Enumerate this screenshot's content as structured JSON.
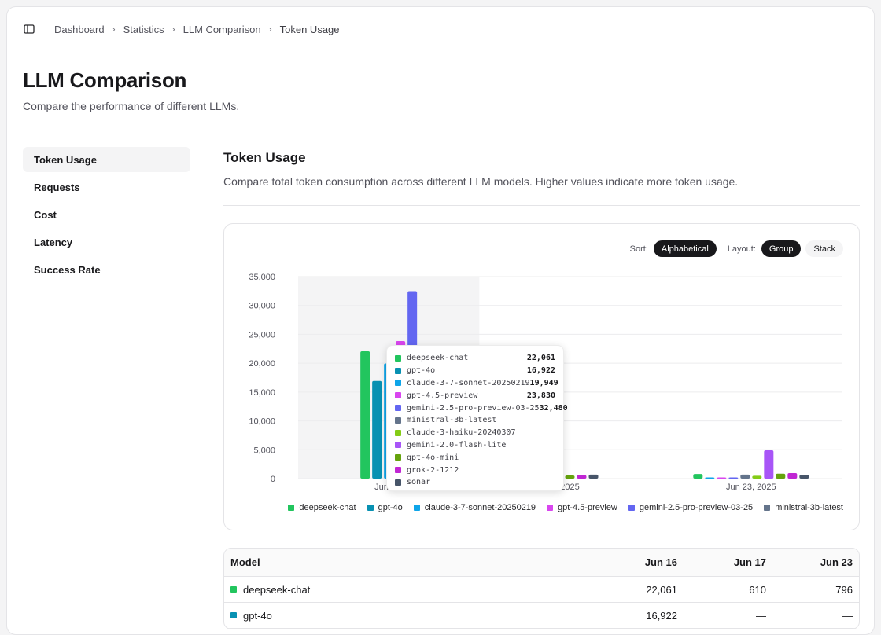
{
  "breadcrumb": [
    "Dashboard",
    "Statistics",
    "LLM Comparison",
    "Token Usage"
  ],
  "page": {
    "title": "LLM Comparison",
    "subtitle": "Compare the performance of different LLMs."
  },
  "sidebar": {
    "items": [
      {
        "label": "Token Usage",
        "active": true
      },
      {
        "label": "Requests"
      },
      {
        "label": "Cost"
      },
      {
        "label": "Latency"
      },
      {
        "label": "Success Rate"
      }
    ]
  },
  "section": {
    "title": "Token Usage",
    "description": "Compare total token consumption across different LLM models. Higher values indicate more token usage."
  },
  "controls": {
    "sort_label": "Sort:",
    "sort_value": "Alphabetical",
    "layout_label": "Layout:",
    "layout_group": "Group",
    "layout_stack": "Stack"
  },
  "colors": {
    "deepseek-chat": "#22c55e",
    "gpt-4o": "#0891b2",
    "claude-3-7-sonnet-20250219": "#0ea5e9",
    "gpt-4.5-preview": "#d946ef",
    "gemini-2.5-pro-preview-03-25": "#6366f1",
    "ministral-3b-latest": "#64748b",
    "claude-3-haiku-20240307": "#84cc16",
    "gemini-2.0-flash-lite": "#a855f7",
    "gpt-4o-mini": "#65a30d",
    "grok-2-1212": "#c026d3",
    "sonar": "#475569"
  },
  "chart_data": {
    "type": "bar",
    "layout": "grouped",
    "categories": [
      "Jun 16, 2025",
      "Jun 17, 2025",
      "Jun 23, 2025"
    ],
    "x_tick_labels": [
      "Jun 16,",
      "2025",
      "Jun 23, 2025"
    ],
    "ylim": [
      0,
      35000
    ],
    "yticks": [
      "0",
      "5,000",
      "10,000",
      "15,000",
      "20,000",
      "25,000",
      "30,000",
      "35,000"
    ],
    "highlighted_category": "Jun 16, 2025",
    "series": [
      {
        "name": "deepseek-chat",
        "values": [
          22061,
          610,
          796
        ]
      },
      {
        "name": "gpt-4o",
        "values": [
          16922,
          null,
          null
        ]
      },
      {
        "name": "claude-3-7-sonnet-20250219",
        "values": [
          19949,
          null,
          100
        ]
      },
      {
        "name": "gpt-4.5-preview",
        "values": [
          23830,
          null,
          100
        ]
      },
      {
        "name": "gemini-2.5-pro-preview-03-25",
        "values": [
          32480,
          null,
          100
        ]
      },
      {
        "name": "ministral-3b-latest",
        "values": [
          null,
          null,
          700
        ]
      },
      {
        "name": "claude-3-haiku-20240307",
        "values": [
          null,
          500,
          500
        ]
      },
      {
        "name": "gemini-2.0-flash-lite",
        "values": [
          null,
          null,
          4900
        ]
      },
      {
        "name": "gpt-4o-mini",
        "values": [
          null,
          550,
          850
        ]
      },
      {
        "name": "grok-2-1212",
        "values": [
          null,
          600,
          950
        ]
      },
      {
        "name": "sonar",
        "values": [
          null,
          700,
          650
        ]
      }
    ],
    "legend": [
      "deepseek-chat",
      "gpt-4o",
      "claude-3-7-sonnet-20250219",
      "gpt-4.5-preview",
      "gemini-2.5-pro-preview-03-25",
      "ministral-3b-latest"
    ]
  },
  "tooltip": {
    "rows": [
      {
        "name": "deepseek-chat",
        "value": "22,061"
      },
      {
        "name": "gpt-4o",
        "value": "16,922"
      },
      {
        "name": "claude-3-7-sonnet-20250219",
        "value": "19,949"
      },
      {
        "name": "gpt-4.5-preview",
        "value": "23,830"
      },
      {
        "name": "gemini-2.5-pro-preview-03-25",
        "value": "32,480"
      },
      {
        "name": "ministral-3b-latest",
        "value": ""
      },
      {
        "name": "claude-3-haiku-20240307",
        "value": ""
      },
      {
        "name": "gemini-2.0-flash-lite",
        "value": ""
      },
      {
        "name": "gpt-4o-mini",
        "value": ""
      },
      {
        "name": "grok-2-1212",
        "value": ""
      },
      {
        "name": "sonar",
        "value": ""
      }
    ]
  },
  "table": {
    "headers": [
      "Model",
      "Jun 16",
      "Jun 17",
      "Jun 23"
    ],
    "rows": [
      {
        "model": "deepseek-chat",
        "jun16": "22,061",
        "jun17": "610",
        "jun23": "796"
      },
      {
        "model": "gpt-4o",
        "jun16": "16,922",
        "jun17": "—",
        "jun23": "—"
      }
    ]
  }
}
